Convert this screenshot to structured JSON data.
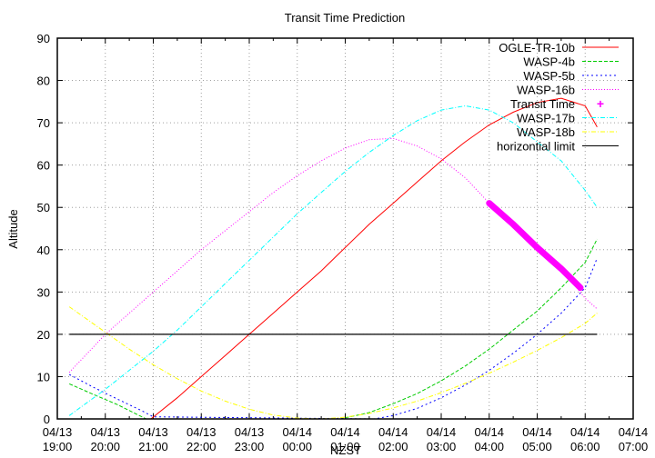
{
  "chart_data": {
    "type": "line",
    "title": "Transit Time Prediction",
    "xlabel": "NZST",
    "ylabel": "Altitude",
    "ylim": [
      0,
      90
    ],
    "yticks": [
      0,
      10,
      20,
      30,
      40,
      50,
      60,
      70,
      80,
      90
    ],
    "xlim_hours_from_start": [
      0,
      12
    ],
    "xticks": [
      {
        "date": "04/13",
        "time": "19:00"
      },
      {
        "date": "04/13",
        "time": "20:00"
      },
      {
        "date": "04/13",
        "time": "21:00"
      },
      {
        "date": "04/13",
        "time": "22:00"
      },
      {
        "date": "04/13",
        "time": "23:00"
      },
      {
        "date": "04/14",
        "time": "00:00"
      },
      {
        "date": "04/14",
        "time": "01:00"
      },
      {
        "date": "04/14",
        "time": "02:00"
      },
      {
        "date": "04/14",
        "time": "03:00"
      },
      {
        "date": "04/14",
        "time": "04:00"
      },
      {
        "date": "04/14",
        "time": "05:00"
      },
      {
        "date": "04/14",
        "time": "06:00"
      },
      {
        "date": "04/14",
        "time": "07:00"
      }
    ],
    "grid": true,
    "legend_position": "top-right-inside",
    "series": [
      {
        "name": "OGLE-TR-10b",
        "color": "#ff0000",
        "style": "solid",
        "x": [
          1.95,
          2.5,
          3.0,
          3.5,
          4.0,
          4.5,
          5.0,
          5.5,
          6.0,
          6.5,
          7.0,
          7.5,
          8.0,
          8.5,
          9.0,
          9.5,
          10.0,
          10.5,
          11.0,
          11.25
        ],
        "y": [
          0,
          5,
          10,
          15,
          20,
          25,
          30,
          35,
          40.5,
          46,
          51,
          56,
          61,
          65.5,
          69.5,
          72.5,
          74.8,
          75.8,
          74,
          69
        ]
      },
      {
        "name": "WASP-4b",
        "color": "#00cc00",
        "style": "dashed",
        "x": [
          0.25,
          0.75,
          1.25,
          1.85,
          5.9,
          6.5,
          7.0,
          7.5,
          8.0,
          8.5,
          9.0,
          9.5,
          10.0,
          10.5,
          11.0,
          11.25
        ],
        "y": [
          8.3,
          5.8,
          3.4,
          0,
          0,
          1.5,
          3.6,
          6,
          9,
          12.5,
          16.5,
          21,
          25.5,
          31,
          37,
          42.5
        ]
      },
      {
        "name": "WASP-5b",
        "color": "#0000ff",
        "style": "dotted-dash",
        "x": [
          0.25,
          0.75,
          1.25,
          1.75,
          2.0,
          6.6,
          7.0,
          7.5,
          8.0,
          8.5,
          9.0,
          9.5,
          10.0,
          10.5,
          11.0,
          11.25
        ],
        "y": [
          10.5,
          7.5,
          4.7,
          2,
          0.5,
          0,
          0.8,
          2.5,
          5,
          8,
          11.5,
          15.5,
          20,
          25,
          31,
          38
        ]
      },
      {
        "name": "WASP-16b",
        "color": "#ff00ff",
        "style": "dotted",
        "x": [
          0.25,
          1.0,
          1.5,
          2.0,
          2.5,
          3.0,
          3.5,
          4.0,
          4.5,
          5.0,
          5.5,
          6.0,
          6.5,
          7.0,
          7.5,
          8.0,
          8.5,
          9.0,
          9.5,
          10.0,
          10.5,
          11.0,
          11.25
        ],
        "y": [
          11,
          20,
          25,
          30,
          35,
          40,
          44.5,
          49,
          53.5,
          57.5,
          61,
          64,
          66,
          66.3,
          64.5,
          61.5,
          57,
          51,
          45.5,
          40.5,
          35.5,
          28.5,
          26
        ]
      },
      {
        "name": "Transit Time",
        "color": "#ff00ff",
        "style": "points",
        "x": [
          9.0,
          9.5,
          10.0,
          10.5,
          10.9
        ],
        "y": [
          51,
          46,
          40.5,
          35.5,
          31
        ]
      },
      {
        "name": "WASP-17b",
        "color": "#00ffff",
        "style": "dash-dot",
        "x": [
          0.25,
          1.0,
          1.5,
          2.0,
          2.5,
          3.0,
          3.5,
          4.0,
          4.5,
          5.0,
          5.5,
          6.0,
          6.5,
          7.0,
          7.5,
          8.0,
          8.5,
          9.0,
          9.5,
          10.0,
          10.5,
          11.0,
          11.25
        ],
        "y": [
          0.8,
          7,
          11.5,
          16,
          21,
          26.5,
          32,
          37.5,
          43,
          48.5,
          53.5,
          58.5,
          63,
          67,
          70.5,
          73,
          74,
          73,
          70,
          65.5,
          61,
          54,
          50
        ]
      },
      {
        "name": "WASP-18b",
        "color": "#ffff00",
        "style": "dash-dot",
        "x": [
          0.25,
          1.0,
          1.5,
          2.0,
          2.5,
          3.0,
          3.5,
          4.0,
          4.5,
          5.0,
          5.5,
          6.0,
          6.5,
          7.0,
          7.5,
          8.0,
          8.5,
          9.0,
          9.5,
          10.0,
          10.5,
          11.0,
          11.25
        ],
        "y": [
          26.5,
          20.5,
          16.5,
          12.8,
          9.5,
          6.6,
          4.2,
          2.3,
          0.9,
          0.2,
          0,
          0.4,
          1.3,
          2.6,
          4.2,
          6.2,
          8.4,
          10.8,
          13.4,
          16.2,
          19.2,
          22.6,
          25
        ]
      },
      {
        "name": "horizontal limit",
        "color": "#000000",
        "style": "solid",
        "x": [
          0.25,
          11.25
        ],
        "y": [
          20,
          20
        ]
      }
    ]
  },
  "legend": [
    {
      "label": "OGLE-TR-10b"
    },
    {
      "label": "WASP-4b"
    },
    {
      "label": "WASP-5b"
    },
    {
      "label": "WASP-16b"
    },
    {
      "label": "Transit Time"
    },
    {
      "label": "WASP-17b"
    },
    {
      "label": "WASP-18b"
    },
    {
      "label": "horizontial limit"
    }
  ]
}
